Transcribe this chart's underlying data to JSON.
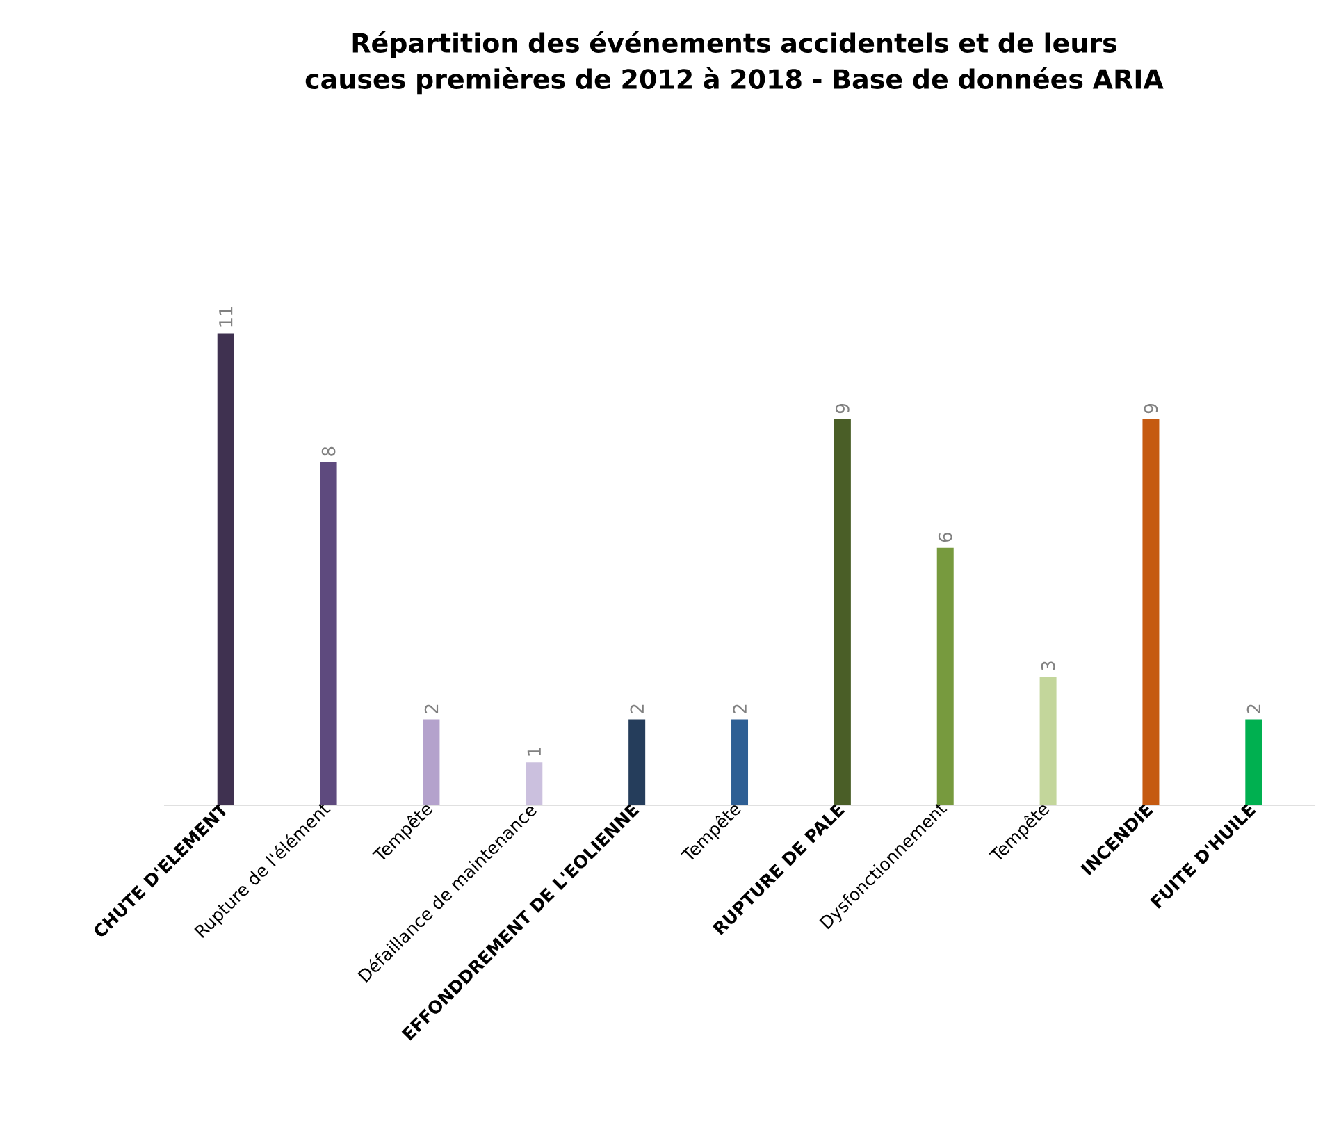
{
  "chart_data": {
    "type": "bar",
    "title": "Répartition des événements accidentels et de leurs causes premières de 2012 à 2018 - Base de données ARIA",
    "categories": [
      "**CHUTE D'ELEMENT**",
      "Rupture de l'élément",
      "Tempête",
      "Défaillance de maintenance",
      "**EFFONDDREMENT DE L'EOLIENNE**",
      "Tempête",
      "**RUPTURE DE PALE**",
      "Dysfonctionnement",
      "Tempête",
      "**INCENDIE**",
      "**FUITE D'HUILE**"
    ],
    "values": [
      11,
      8,
      2,
      1,
      2,
      2,
      9,
      6,
      3,
      9,
      2
    ],
    "colors": [
      "#3f3150",
      "#5e4a7e",
      "#b4a2cc",
      "#cbc0de",
      "#253d5b",
      "#2e5f94",
      "#4a5e27",
      "#779a3e",
      "#c3d69b",
      "#c55a11",
      "#00b050"
    ],
    "data_labels": true
  }
}
